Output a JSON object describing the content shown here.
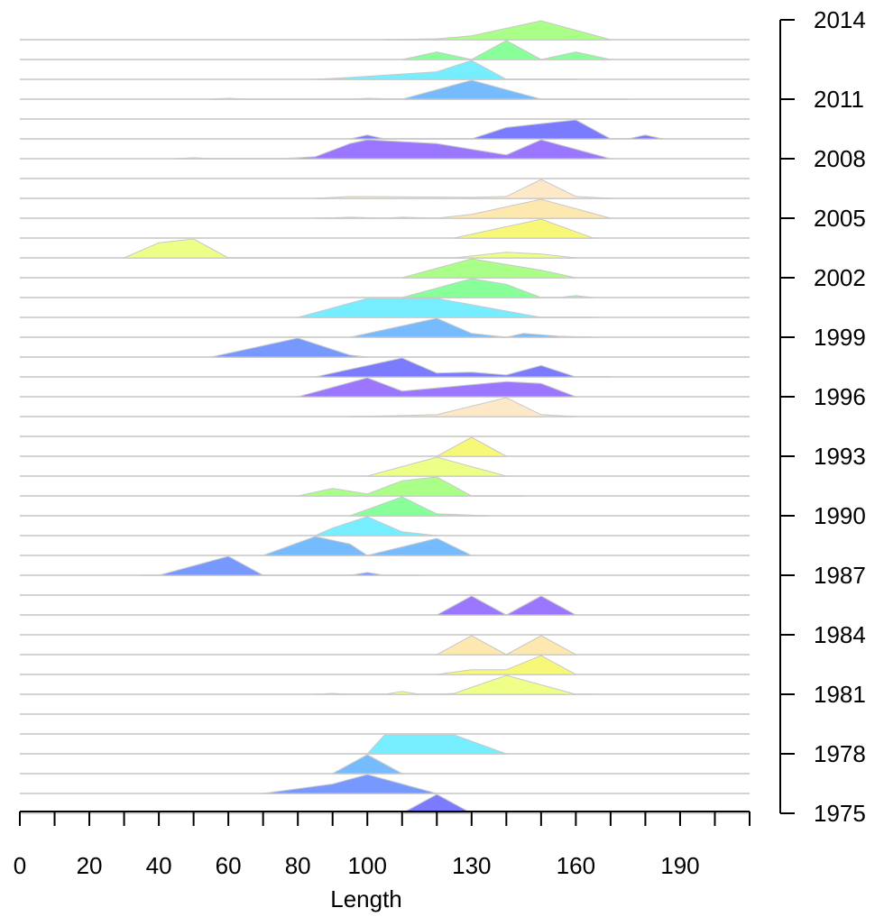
{
  "chart_data": {
    "type": "area",
    "title": "",
    "xlabel": "Length",
    "ylabel": "",
    "xlim": [
      0,
      210
    ],
    "x_major_ticks": [
      0,
      10,
      20,
      30,
      40,
      50,
      60,
      70,
      80,
      90,
      100,
      110,
      120,
      130,
      140,
      150,
      160,
      170,
      180,
      190,
      200,
      210
    ],
    "x_tick_labels": [
      {
        "value": 0,
        "label": "0"
      },
      {
        "value": 20,
        "label": "20"
      },
      {
        "value": 40,
        "label": "40"
      },
      {
        "value": 60,
        "label": "60"
      },
      {
        "value": 80,
        "label": "80"
      },
      {
        "value": 100,
        "label": "100"
      },
      {
        "value": 130,
        "label": "130"
      },
      {
        "value": 160,
        "label": "160"
      },
      {
        "value": 190,
        "label": "190"
      }
    ],
    "y_axis_position": "right",
    "years": [
      1975,
      1976,
      1977,
      1978,
      1979,
      1980,
      1981,
      1982,
      1983,
      1984,
      1985,
      1986,
      1987,
      1988,
      1989,
      1990,
      1991,
      1992,
      1993,
      1994,
      1995,
      1996,
      1997,
      1998,
      1999,
      2000,
      2001,
      2002,
      2003,
      2004,
      2005,
      2006,
      2007,
      2008,
      2009,
      2010,
      2011,
      2012,
      2013,
      2014
    ],
    "y_tick_labels": [
      "1975",
      "1978",
      "1981",
      "1984",
      "1987",
      "1990",
      "1993",
      "1996",
      "1999",
      "2002",
      "2005",
      "2008",
      "2011",
      "2014"
    ],
    "series": [
      {
        "year": 1975,
        "color": "#7b7bff",
        "points": [
          [
            110,
            0
          ],
          [
            120,
            1
          ],
          [
            130,
            0
          ]
        ]
      },
      {
        "year": 1976,
        "color": "#7799ff",
        "points": [
          [
            70,
            0
          ],
          [
            90,
            0.5
          ],
          [
            100,
            1
          ],
          [
            120,
            0
          ]
        ]
      },
      {
        "year": 1977,
        "color": "#77bbff",
        "points": [
          [
            90,
            0
          ],
          [
            100,
            1
          ],
          [
            110,
            0
          ]
        ]
      },
      {
        "year": 1978,
        "color": "#77eeff",
        "points": [
          [
            100,
            0
          ],
          [
            105,
            1
          ],
          [
            125,
            1
          ],
          [
            140,
            0
          ]
        ]
      },
      {
        "year": 1979,
        "color": "#cccccc",
        "points": []
      },
      {
        "year": 1980,
        "color": "#cccccc",
        "points": []
      },
      {
        "year": 1981,
        "color": "#f0ff88",
        "points": [
          [
            85,
            0
          ],
          [
            90,
            0.05
          ],
          [
            95,
            0
          ],
          [
            100,
            0
          ],
          [
            105,
            0
          ],
          [
            110,
            0.15
          ],
          [
            115,
            0
          ],
          [
            120,
            0
          ],
          [
            125,
            0.05
          ],
          [
            140,
            1
          ],
          [
            160,
            0
          ],
          [
            165,
            0
          ]
        ]
      },
      {
        "year": 1982,
        "color": "#f8f878",
        "points": [
          [
            120,
            0
          ],
          [
            130,
            0.25
          ],
          [
            140,
            0.25
          ],
          [
            150,
            1
          ],
          [
            160,
            0
          ]
        ]
      },
      {
        "year": 1983,
        "color": "#fde8b0",
        "points": [
          [
            120,
            0
          ],
          [
            130,
            1
          ],
          [
            140,
            0
          ],
          [
            150,
            1
          ],
          [
            160,
            0
          ]
        ]
      },
      {
        "year": 1984,
        "color": "#cccccc",
        "points": []
      },
      {
        "year": 1985,
        "color": "#9b77ff",
        "points": [
          [
            120,
            0
          ],
          [
            130,
            1
          ],
          [
            140,
            0
          ],
          [
            150,
            1
          ],
          [
            160,
            0
          ]
        ]
      },
      {
        "year": 1986,
        "color": "#cccccc",
        "points": []
      },
      {
        "year": 1987,
        "color": "#7799ff",
        "points": [
          [
            35,
            0
          ],
          [
            40,
            0
          ],
          [
            60,
            1
          ],
          [
            70,
            0
          ],
          [
            75,
            0
          ],
          [
            95,
            0
          ],
          [
            100,
            0.15
          ],
          [
            105,
            0
          ],
          [
            115,
            0
          ]
        ]
      },
      {
        "year": 1988,
        "color": "#77bbff",
        "points": [
          [
            70,
            0
          ],
          [
            85,
            1
          ],
          [
            95,
            0.6
          ],
          [
            100,
            0
          ],
          [
            120,
            0.9
          ],
          [
            130,
            0
          ]
        ]
      },
      {
        "year": 1989,
        "color": "#77eeff",
        "points": [
          [
            85,
            0
          ],
          [
            90,
            0.4
          ],
          [
            100,
            1
          ],
          [
            110,
            0.2
          ],
          [
            120,
            0
          ]
        ]
      },
      {
        "year": 1990,
        "color": "#88ff99",
        "points": [
          [
            95,
            0
          ],
          [
            110,
            1
          ],
          [
            120,
            0.1
          ],
          [
            135,
            0
          ]
        ]
      },
      {
        "year": 1991,
        "color": "#aaff88",
        "points": [
          [
            80,
            0
          ],
          [
            90,
            0.4
          ],
          [
            100,
            0.1
          ],
          [
            110,
            0.8
          ],
          [
            120,
            1
          ],
          [
            130,
            0
          ],
          [
            145,
            0
          ]
        ]
      },
      {
        "year": 1992,
        "color": "#eeff88",
        "points": [
          [
            100,
            0
          ],
          [
            120,
            1
          ],
          [
            140,
            0
          ]
        ]
      },
      {
        "year": 1993,
        "color": "#f8f878",
        "points": [
          [
            120,
            0
          ],
          [
            130,
            1
          ],
          [
            140,
            0
          ]
        ]
      },
      {
        "year": 1994,
        "color": "#cccccc",
        "points": []
      },
      {
        "year": 1995,
        "color": "#fde8c8",
        "points": [
          [
            95,
            0
          ],
          [
            110,
            0.05
          ],
          [
            120,
            0.1
          ],
          [
            140,
            1
          ],
          [
            150,
            0.1
          ],
          [
            160,
            0
          ]
        ]
      },
      {
        "year": 1996,
        "color": "#9b77ff",
        "points": [
          [
            80,
            0
          ],
          [
            100,
            1
          ],
          [
            110,
            0.3
          ],
          [
            140,
            0.8
          ],
          [
            150,
            0.7
          ],
          [
            160,
            0
          ]
        ]
      },
      {
        "year": 1997,
        "color": "#7b7bff",
        "points": [
          [
            85,
            0
          ],
          [
            110,
            1
          ],
          [
            120,
            0.2
          ],
          [
            130,
            0.25
          ],
          [
            140,
            0.1
          ],
          [
            150,
            0.6
          ],
          [
            160,
            0
          ],
          [
            170,
            0
          ]
        ]
      },
      {
        "year": 1998,
        "color": "#7799ff",
        "points": [
          [
            55,
            0
          ],
          [
            80,
            1
          ],
          [
            95,
            0.1
          ],
          [
            100,
            0
          ]
        ]
      },
      {
        "year": 1999,
        "color": "#77bbff",
        "points": [
          [
            95,
            0
          ],
          [
            120,
            1
          ],
          [
            130,
            0.2
          ],
          [
            135,
            0.1
          ],
          [
            140,
            0
          ],
          [
            145,
            0.2
          ],
          [
            155,
            0.05
          ],
          [
            165,
            0
          ]
        ]
      },
      {
        "year": 2000,
        "color": "#77eeff",
        "points": [
          [
            80,
            0
          ],
          [
            100,
            1
          ],
          [
            120,
            1
          ],
          [
            150,
            0
          ],
          [
            165,
            0
          ]
        ]
      },
      {
        "year": 2001,
        "color": "#88ff99",
        "points": [
          [
            110,
            0
          ],
          [
            130,
            1
          ],
          [
            140,
            0.7
          ],
          [
            150,
            0
          ],
          [
            155,
            0
          ],
          [
            160,
            0.1
          ],
          [
            165,
            0
          ]
        ]
      },
      {
        "year": 2002,
        "color": "#aaff88",
        "points": [
          [
            110,
            0
          ],
          [
            130,
            1
          ],
          [
            150,
            0.4
          ],
          [
            160,
            0
          ]
        ]
      },
      {
        "year": 2003,
        "color": "#eeff88",
        "points": [
          [
            30,
            0
          ],
          [
            40,
            0.8
          ],
          [
            50,
            1
          ],
          [
            60,
            0
          ],
          [
            125,
            0
          ],
          [
            140,
            0.3
          ],
          [
            150,
            0.2
          ],
          [
            160,
            0
          ]
        ]
      },
      {
        "year": 2004,
        "color": "#f8f878",
        "points": [
          [
            125,
            0
          ],
          [
            150,
            1
          ],
          [
            165,
            0
          ]
        ]
      },
      {
        "year": 2005,
        "color": "#fde8b0",
        "points": [
          [
            85,
            0
          ],
          [
            95,
            0.05
          ],
          [
            105,
            0
          ],
          [
            110,
            0.05
          ],
          [
            120,
            0
          ],
          [
            130,
            0.2
          ],
          [
            150,
            1
          ],
          [
            170,
            0
          ]
        ]
      },
      {
        "year": 2006,
        "color": "#fde8c8",
        "points": [
          [
            85,
            0
          ],
          [
            95,
            0.1
          ],
          [
            130,
            0.05
          ],
          [
            140,
            0.1
          ],
          [
            150,
            1
          ],
          [
            160,
            0.1
          ],
          [
            170,
            0
          ]
        ]
      },
      {
        "year": 2007,
        "color": "#cccccc",
        "points": []
      },
      {
        "year": 2008,
        "color": "#9b77ff",
        "points": [
          [
            45,
            0
          ],
          [
            50,
            0.05
          ],
          [
            55,
            0
          ],
          [
            75,
            0
          ],
          [
            85,
            0.1
          ],
          [
            95,
            0.8
          ],
          [
            100,
            1
          ],
          [
            120,
            0.8
          ],
          [
            140,
            0.2
          ],
          [
            150,
            1
          ],
          [
            170,
            0
          ]
        ]
      },
      {
        "year": 2009,
        "color": "#7b7bff",
        "points": [
          [
            95,
            0
          ],
          [
            100,
            0.2
          ],
          [
            105,
            0
          ],
          [
            130,
            0
          ],
          [
            140,
            0.6
          ],
          [
            160,
            1
          ],
          [
            170,
            0
          ],
          [
            175,
            0
          ],
          [
            180,
            0.2
          ],
          [
            185,
            0
          ]
        ]
      },
      {
        "year": 2010,
        "color": "#cccccc",
        "points": []
      },
      {
        "year": 2011,
        "color": "#77bbff",
        "points": [
          [
            55,
            0
          ],
          [
            60,
            0.05
          ],
          [
            65,
            0
          ],
          [
            95,
            0
          ],
          [
            100,
            0.05
          ],
          [
            110,
            0
          ],
          [
            130,
            1
          ],
          [
            150,
            0
          ],
          [
            175,
            0
          ]
        ]
      },
      {
        "year": 2012,
        "color": "#77eeff",
        "points": [
          [
            85,
            0
          ],
          [
            95,
            0.1
          ],
          [
            120,
            0.4
          ],
          [
            130,
            1
          ],
          [
            140,
            0
          ],
          [
            160,
            0
          ]
        ]
      },
      {
        "year": 2013,
        "color": "#88ff99",
        "points": [
          [
            110,
            0
          ],
          [
            120,
            0.4
          ],
          [
            130,
            0
          ],
          [
            140,
            1
          ],
          [
            150,
            0
          ],
          [
            160,
            0.4
          ],
          [
            170,
            0
          ]
        ]
      },
      {
        "year": 2014,
        "color": "#aaff88",
        "points": [
          [
            105,
            0
          ],
          [
            120,
            0.05
          ],
          [
            130,
            0.2
          ],
          [
            150,
            1
          ],
          [
            170,
            0
          ]
        ]
      }
    ],
    "grid": false,
    "legend": "none"
  }
}
